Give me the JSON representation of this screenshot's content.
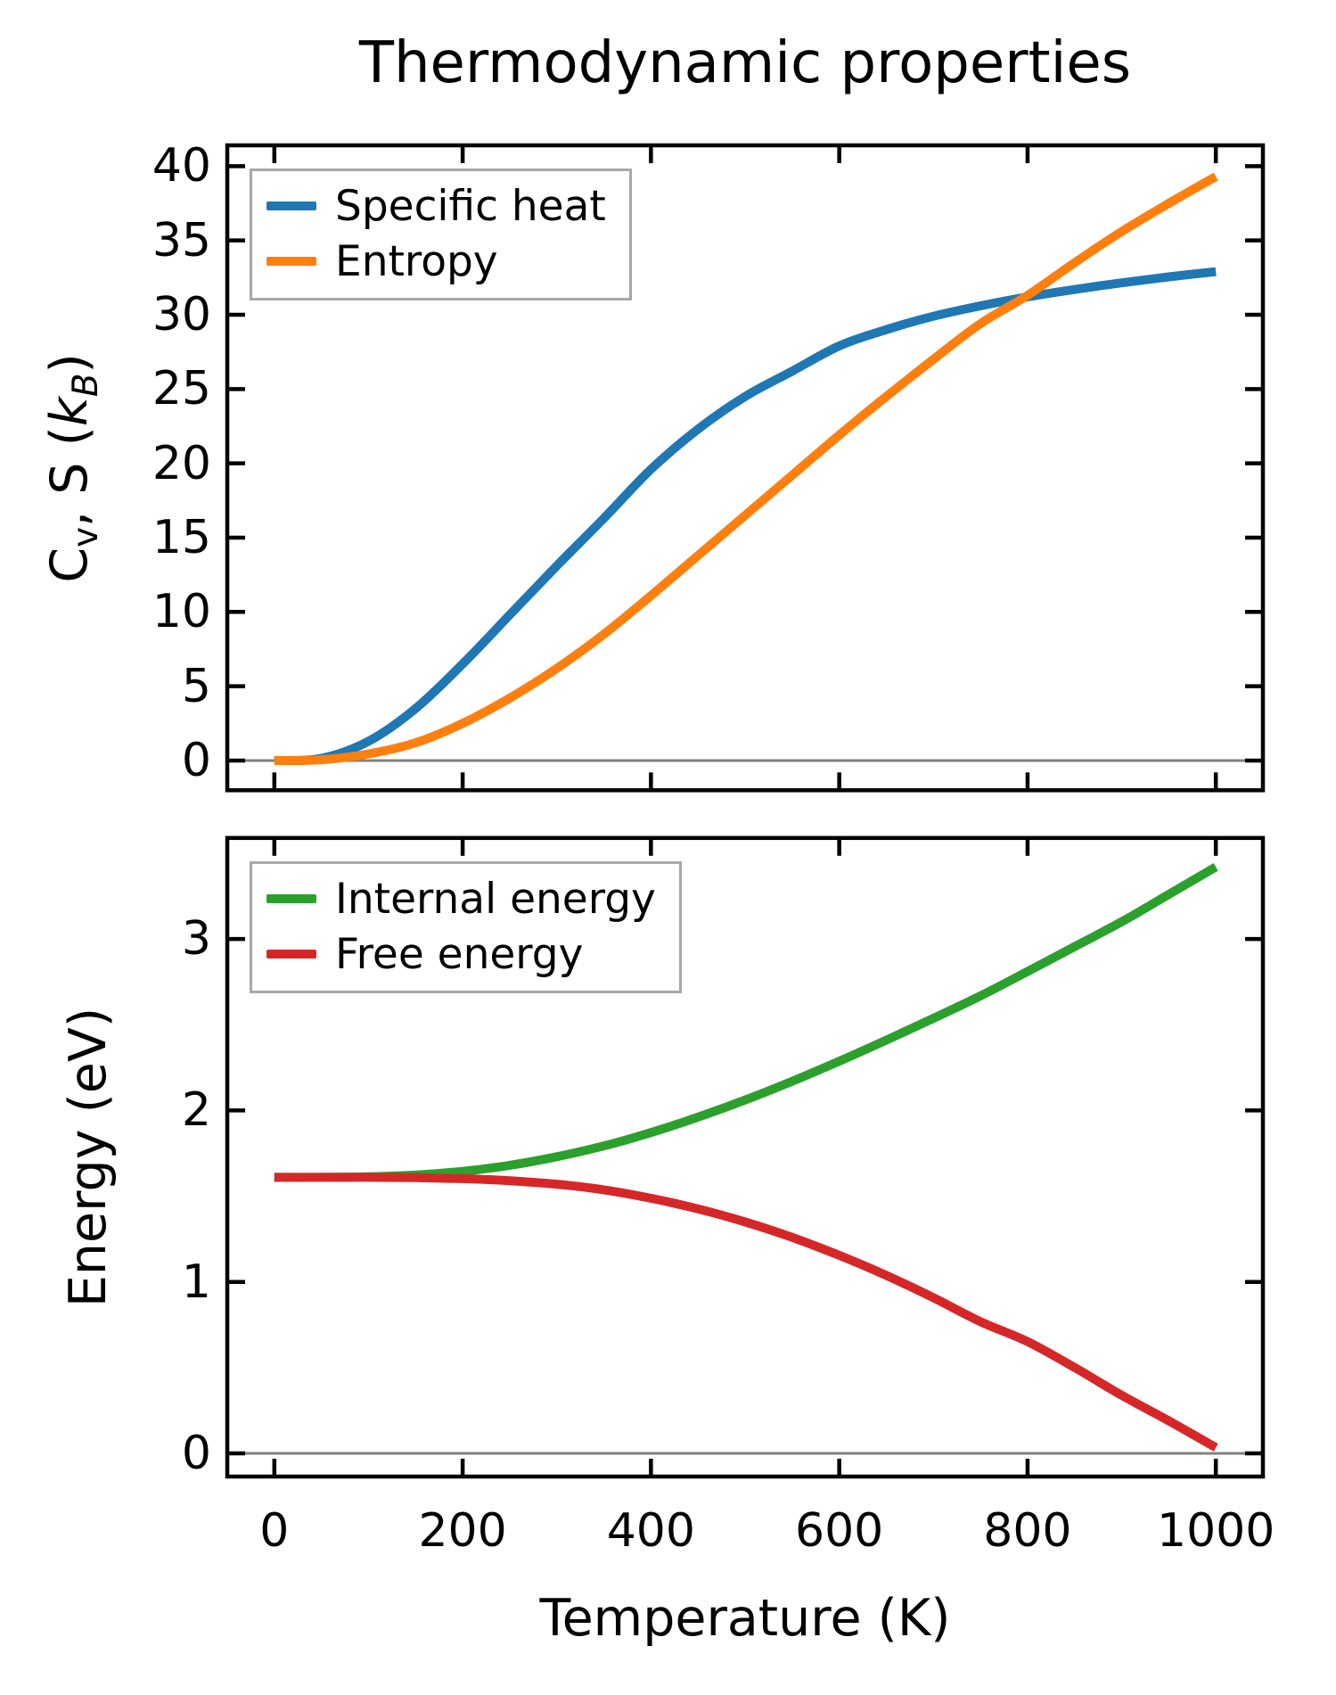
{
  "figure": {
    "title": "Thermodynamic properties",
    "xlabel": "Temperature (K)",
    "background": "#ffffff",
    "text_color": "#000000",
    "spine_color": "#000000",
    "zero_line_color": "#808080",
    "legend_border_color": "#a8a8a8"
  },
  "chart_data": [
    {
      "type": "line",
      "panel": "top",
      "title": "Thermodynamic properties",
      "ylabel": "C_v, S (k_B)",
      "ylabel_parts": {
        "c": "C",
        "c_sub": "v",
        "mid": ", S (",
        "k": "k",
        "k_sub": "B",
        "close": ")"
      },
      "xlabel": "",
      "xlim": [
        -50,
        1050
      ],
      "ylim": [
        -2.0,
        41.4
      ],
      "x_ticks": [
        0,
        200,
        400,
        600,
        800,
        1000
      ],
      "x_tick_labels": [],
      "y_ticks": [
        0,
        5,
        10,
        15,
        20,
        25,
        30,
        35,
        40
      ],
      "y_tick_labels": [
        "0",
        "5",
        "10",
        "15",
        "20",
        "25",
        "30",
        "35",
        "40"
      ],
      "grid": false,
      "zero_line": true,
      "legend_position": "upper left",
      "x": [
        0,
        50,
        100,
        150,
        200,
        250,
        300,
        350,
        400,
        450,
        500,
        550,
        600,
        650,
        700,
        750,
        800,
        850,
        900,
        950,
        1000
      ],
      "series": [
        {
          "name": "Specific heat",
          "color": "#1f77b4",
          "values": [
            0,
            0.15,
            1.3,
            3.5,
            6.5,
            9.8,
            13.1,
            16.3,
            19.6,
            22.3,
            24.5,
            26.2,
            27.9,
            29.0,
            29.9,
            30.6,
            31.2,
            31.7,
            32.15,
            32.55,
            32.9
          ]
        },
        {
          "name": "Entropy",
          "color": "#ff7f0e",
          "values": [
            0,
            0.05,
            0.45,
            1.2,
            2.5,
            4.2,
            6.2,
            8.5,
            11.1,
            13.8,
            16.5,
            19.2,
            21.9,
            24.5,
            27.0,
            29.4,
            31.3,
            33.5,
            35.6,
            37.5,
            39.3
          ]
        }
      ]
    },
    {
      "type": "line",
      "panel": "bottom",
      "title": "",
      "ylabel": "Energy (eV)",
      "xlabel": "Temperature (K)",
      "xlim": [
        -50,
        1050
      ],
      "ylim": [
        -0.135,
        3.589
      ],
      "x_ticks": [
        0,
        200,
        400,
        600,
        800,
        1000
      ],
      "x_tick_labels": [
        "0",
        "200",
        "400",
        "600",
        "800",
        "1000"
      ],
      "y_ticks": [
        0,
        1,
        2,
        3
      ],
      "y_tick_labels": [
        "0",
        "1",
        "2",
        "3"
      ],
      "grid": false,
      "zero_line": true,
      "legend_position": "upper left",
      "x": [
        0,
        50,
        100,
        150,
        200,
        250,
        300,
        350,
        400,
        450,
        500,
        550,
        600,
        650,
        700,
        750,
        800,
        850,
        900,
        950,
        1000
      ],
      "series": [
        {
          "name": "Internal energy",
          "color": "#2ca02c",
          "values": [
            1.61,
            1.61,
            1.613,
            1.623,
            1.645,
            1.68,
            1.73,
            1.793,
            1.871,
            1.961,
            2.061,
            2.17,
            2.287,
            2.41,
            2.537,
            2.668,
            2.81,
            2.955,
            3.1,
            3.26,
            3.42
          ]
        },
        {
          "name": "Free energy",
          "color": "#d62728",
          "values": [
            1.61,
            1.61,
            1.61,
            1.608,
            1.602,
            1.59,
            1.57,
            1.537,
            1.488,
            1.426,
            1.35,
            1.26,
            1.155,
            1.038,
            0.908,
            0.768,
            0.652,
            0.501,
            0.339,
            0.19,
            0.034
          ]
        }
      ]
    }
  ]
}
